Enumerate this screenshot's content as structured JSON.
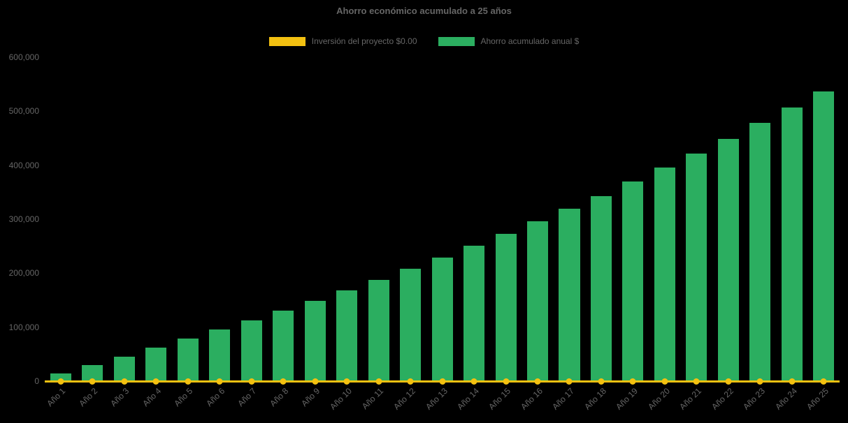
{
  "title": "Ahorro económico acumulado a 25 años",
  "legend": {
    "items": [
      {
        "label": "Inversión del proyecto $0.00",
        "color": "#f3c111"
      },
      {
        "label": "Ahorro acumulado anual $",
        "color": "#2bae60"
      }
    ]
  },
  "chart_data": {
    "type": "bar",
    "title": "Ahorro económico acumulado a 25 años",
    "categories": [
      "Año 1",
      "Año 2",
      "Año 3",
      "Año 4",
      "Año 5",
      "Año 6",
      "Año 7",
      "Año 8",
      "Año 9",
      "Año 10",
      "Año 11",
      "Año 12",
      "Año 13",
      "Año 14",
      "Año 15",
      "Año 16",
      "Año 17",
      "Año 18",
      "Año 19",
      "Año 20",
      "Año 21",
      "Año 22",
      "Año 23",
      "Año 24",
      "Año 25"
    ],
    "series": [
      {
        "name": "Inversión del proyecto $0.00",
        "type": "line",
        "color": "#f3c111",
        "values": [
          0,
          0,
          0,
          0,
          0,
          0,
          0,
          0,
          0,
          0,
          0,
          0,
          0,
          0,
          0,
          0,
          0,
          0,
          0,
          0,
          0,
          0,
          0,
          0,
          0
        ]
      },
      {
        "name": "Ahorro acumulado anual $",
        "type": "bar",
        "color": "#2bae60",
        "values": [
          14000,
          30000,
          45000,
          62000,
          79000,
          96000,
          113000,
          131000,
          149000,
          168000,
          188000,
          208000,
          229000,
          251000,
          273000,
          296000,
          320000,
          343000,
          370000,
          396000,
          422000,
          449000,
          478000,
          507000,
          537000
        ]
      }
    ],
    "xlabel": "",
    "ylabel": "",
    "ylim": [
      0,
      600000
    ],
    "y_ticks": [
      0,
      100000,
      200000,
      300000,
      400000,
      500000,
      600000
    ],
    "y_tick_labels": [
      "0",
      "100,000",
      "200,000",
      "300,000",
      "400,000",
      "500,000",
      "600,000"
    ],
    "grid": false,
    "legend_position": "top",
    "background": "#000000",
    "text_color": "#666666"
  }
}
